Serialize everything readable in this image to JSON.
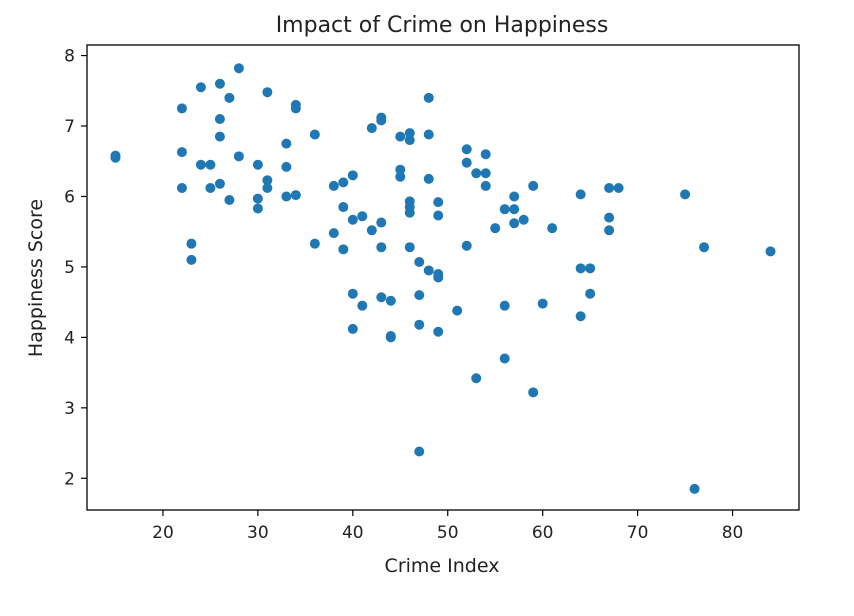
{
  "chart_data": {
    "type": "scatter",
    "title": "Impact of Crime on Happiness",
    "xlabel": "Crime Index",
    "ylabel": "Happiness Score",
    "xlim": [
      12,
      87
    ],
    "ylim": [
      1.55,
      8.15
    ],
    "xticks": [
      20,
      30,
      40,
      50,
      60,
      70,
      80
    ],
    "yticks": [
      2,
      3,
      4,
      5,
      6,
      7,
      8
    ],
    "grid": false,
    "point_color": "#1f77b4",
    "points": [
      [
        15,
        6.58
      ],
      [
        15,
        6.55
      ],
      [
        22,
        7.25
      ],
      [
        22,
        6.63
      ],
      [
        22,
        6.12
      ],
      [
        23,
        5.33
      ],
      [
        23,
        5.1
      ],
      [
        24,
        7.55
      ],
      [
        24,
        6.45
      ],
      [
        25,
        6.45
      ],
      [
        25,
        6.12
      ],
      [
        26,
        7.6
      ],
      [
        26,
        7.1
      ],
      [
        26,
        6.85
      ],
      [
        26,
        6.18
      ],
      [
        27,
        7.4
      ],
      [
        27,
        5.95
      ],
      [
        28,
        7.82
      ],
      [
        28,
        6.57
      ],
      [
        30,
        6.45
      ],
      [
        30,
        5.97
      ],
      [
        30,
        5.83
      ],
      [
        31,
        7.48
      ],
      [
        31,
        6.23
      ],
      [
        31,
        6.12
      ],
      [
        33,
        6.75
      ],
      [
        33,
        6.42
      ],
      [
        33,
        6.0
      ],
      [
        34,
        7.3
      ],
      [
        34,
        7.25
      ],
      [
        34,
        6.02
      ],
      [
        36,
        6.88
      ],
      [
        36,
        5.33
      ],
      [
        38,
        6.15
      ],
      [
        38,
        5.48
      ],
      [
        39,
        6.2
      ],
      [
        39,
        5.85
      ],
      [
        39,
        5.25
      ],
      [
        40,
        6.3
      ],
      [
        40,
        5.67
      ],
      [
        40,
        4.62
      ],
      [
        40,
        4.12
      ],
      [
        41,
        5.72
      ],
      [
        41,
        4.45
      ],
      [
        42,
        6.97
      ],
      [
        42,
        5.52
      ],
      [
        43,
        7.12
      ],
      [
        43,
        7.08
      ],
      [
        43,
        5.63
      ],
      [
        43,
        5.28
      ],
      [
        43,
        4.57
      ],
      [
        44,
        4.52
      ],
      [
        44,
        4.02
      ],
      [
        44,
        4.0
      ],
      [
        45,
        6.85
      ],
      [
        45,
        6.38
      ],
      [
        45,
        6.28
      ],
      [
        46,
        6.9
      ],
      [
        46,
        6.8
      ],
      [
        46,
        5.93
      ],
      [
        46,
        5.85
      ],
      [
        46,
        5.77
      ],
      [
        46,
        5.28
      ],
      [
        47,
        5.07
      ],
      [
        47,
        4.6
      ],
      [
        47,
        4.18
      ],
      [
        47,
        2.38
      ],
      [
        48,
        7.4
      ],
      [
        48,
        6.88
      ],
      [
        48,
        6.25
      ],
      [
        48,
        4.95
      ],
      [
        49,
        5.92
      ],
      [
        49,
        5.73
      ],
      [
        49,
        4.9
      ],
      [
        49,
        4.85
      ],
      [
        49,
        4.08
      ],
      [
        51,
        4.38
      ],
      [
        52,
        6.67
      ],
      [
        52,
        6.48
      ],
      [
        52,
        5.3
      ],
      [
        53,
        6.33
      ],
      [
        53,
        3.42
      ],
      [
        54,
        6.6
      ],
      [
        54,
        6.33
      ],
      [
        54,
        6.15
      ],
      [
        55,
        5.55
      ],
      [
        56,
        5.82
      ],
      [
        56,
        4.45
      ],
      [
        56,
        3.7
      ],
      [
        57,
        6.0
      ],
      [
        57,
        5.82
      ],
      [
        57,
        5.62
      ],
      [
        58,
        5.67
      ],
      [
        59,
        6.15
      ],
      [
        59,
        3.22
      ],
      [
        60,
        4.48
      ],
      [
        61,
        5.55
      ],
      [
        64,
        6.03
      ],
      [
        64,
        4.98
      ],
      [
        64,
        4.3
      ],
      [
        65,
        4.98
      ],
      [
        65,
        4.62
      ],
      [
        67,
        6.12
      ],
      [
        67,
        5.7
      ],
      [
        67,
        5.52
      ],
      [
        68,
        6.12
      ],
      [
        75,
        6.03
      ],
      [
        76,
        1.85
      ],
      [
        77,
        5.28
      ],
      [
        84,
        5.22
      ]
    ]
  }
}
